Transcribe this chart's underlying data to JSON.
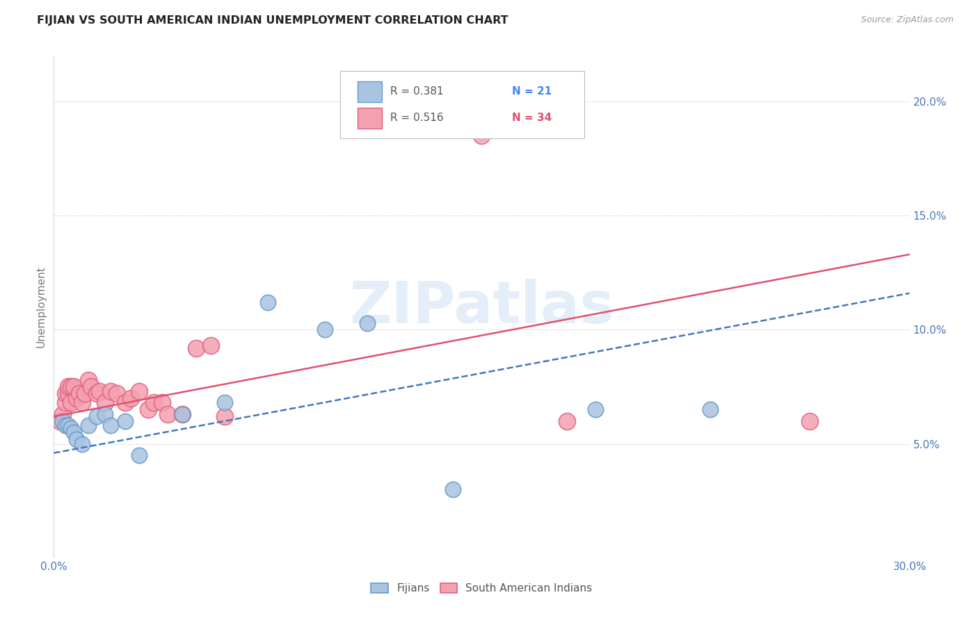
{
  "title": "FIJIAN VS SOUTH AMERICAN INDIAN UNEMPLOYMENT CORRELATION CHART",
  "source": "Source: ZipAtlas.com",
  "ylabel": "Unemployment",
  "xlim": [
    0.0,
    0.3
  ],
  "ylim": [
    0.0,
    0.22
  ],
  "xtick_positions": [
    0.0,
    0.05,
    0.1,
    0.15,
    0.2,
    0.25,
    0.3
  ],
  "xtick_labels": [
    "0.0%",
    "",
    "",
    "",
    "",
    "",
    "30.0%"
  ],
  "yticks_right": [
    0.05,
    0.1,
    0.15,
    0.2
  ],
  "ytick_labels_right": [
    "5.0%",
    "10.0%",
    "15.0%",
    "20.0%"
  ],
  "fijian_color": "#a8c4e0",
  "fijian_edge_color": "#6699cc",
  "sai_color": "#f4a0b0",
  "sai_edge_color": "#e06080",
  "trend_fijian_color": "#4477bb",
  "trend_sai_color": "#e05070",
  "R_fijian": 0.381,
  "N_fijian": 21,
  "R_sai": 0.516,
  "N_sai": 34,
  "fijian_x": [
    0.003,
    0.004,
    0.005,
    0.006,
    0.007,
    0.008,
    0.01,
    0.012,
    0.015,
    0.018,
    0.02,
    0.025,
    0.03,
    0.045,
    0.06,
    0.075,
    0.095,
    0.11,
    0.14,
    0.19,
    0.23
  ],
  "fijian_y": [
    0.06,
    0.058,
    0.058,
    0.057,
    0.055,
    0.052,
    0.05,
    0.058,
    0.062,
    0.063,
    0.058,
    0.06,
    0.045,
    0.063,
    0.068,
    0.112,
    0.1,
    0.103,
    0.03,
    0.065,
    0.065
  ],
  "sai_x": [
    0.002,
    0.003,
    0.004,
    0.004,
    0.005,
    0.005,
    0.006,
    0.006,
    0.007,
    0.008,
    0.009,
    0.01,
    0.011,
    0.012,
    0.013,
    0.015,
    0.016,
    0.018,
    0.02,
    0.022,
    0.025,
    0.027,
    0.03,
    0.033,
    0.035,
    0.038,
    0.04,
    0.045,
    0.05,
    0.055,
    0.06,
    0.15,
    0.18,
    0.265
  ],
  "sai_y": [
    0.06,
    0.063,
    0.068,
    0.072,
    0.072,
    0.075,
    0.068,
    0.075,
    0.075,
    0.07,
    0.072,
    0.068,
    0.072,
    0.078,
    0.075,
    0.072,
    0.073,
    0.068,
    0.073,
    0.072,
    0.068,
    0.07,
    0.073,
    0.065,
    0.068,
    0.068,
    0.063,
    0.063,
    0.092,
    0.093,
    0.062,
    0.185,
    0.06,
    0.06
  ],
  "trend_fijian_x0": 0.0,
  "trend_fijian_y0": 0.046,
  "trend_fijian_x1": 0.3,
  "trend_fijian_y1": 0.116,
  "trend_sai_x0": 0.0,
  "trend_sai_y0": 0.062,
  "trend_sai_x1": 0.3,
  "trend_sai_y1": 0.133,
  "watermark_text": "ZIPatlas",
  "background_color": "#ffffff",
  "grid_color": "#dddddd",
  "legend_R_color": "#555555",
  "legend_N_fijian_color": "#4488ee",
  "legend_N_sai_color": "#e05070"
}
